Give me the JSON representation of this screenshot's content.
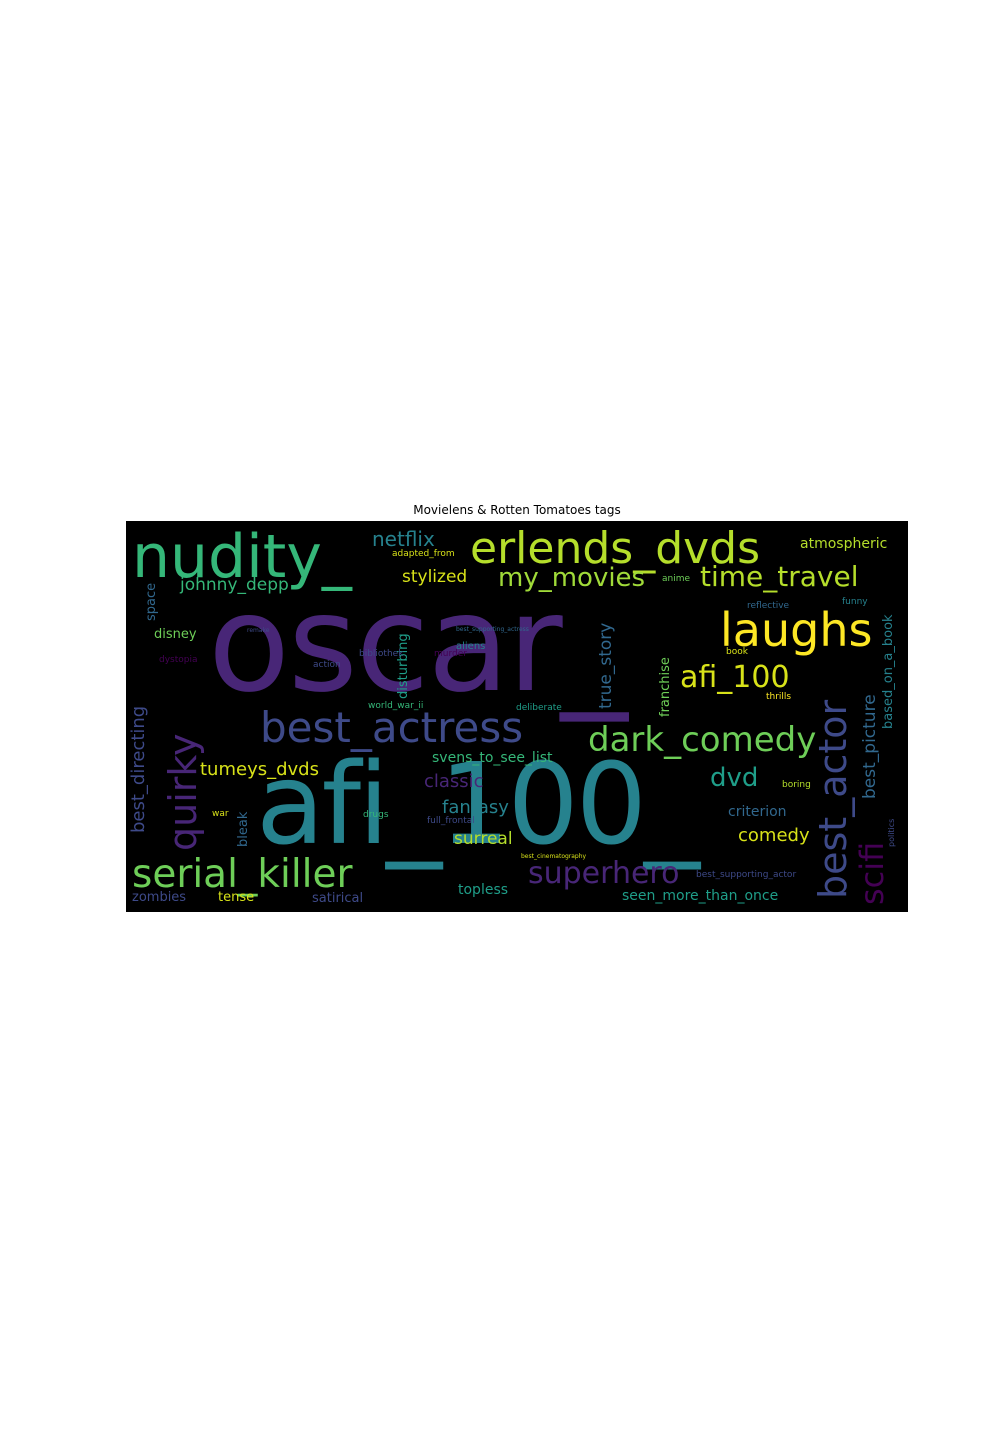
{
  "title": "Movielens & Rotten Tomatoes tags",
  "palette": {
    "purple": "#482677",
    "darkpurple": "#440154",
    "indigo": "#3e4a89",
    "blue": "#31688e",
    "teal": "#26828e",
    "sea": "#1f9e89",
    "green": "#35b779",
    "lime": "#6ece58",
    "yellowgreen": "#b5de2b",
    "yellow": "#fde725"
  },
  "words": [
    {
      "text": "oscar_",
      "color": "#482677"
    },
    {
      "text": "afi_100_",
      "color": "#26828e"
    },
    {
      "text": "nudity_",
      "color": "#35b779"
    },
    {
      "text": "erlends_dvds",
      "color": "#b5de2b"
    },
    {
      "text": "laughs",
      "color": "#fde725"
    },
    {
      "text": "best_actress",
      "color": "#3e4a89"
    },
    {
      "text": "dark_comedy",
      "color": "#6ece58"
    },
    {
      "text": "serial_killer",
      "color": "#6ece58"
    },
    {
      "text": "superhero",
      "color": "#482677"
    },
    {
      "text": "best_actor",
      "color": "#3e4a89"
    },
    {
      "text": "quirky",
      "color": "#482677"
    },
    {
      "text": "scifi",
      "color": "#440154"
    },
    {
      "text": "afi_100",
      "color": "#d8e219"
    },
    {
      "text": "time_travel",
      "color": "#b5de2b"
    },
    {
      "text": "my_movies",
      "color": "#a0da39"
    },
    {
      "text": "netflix",
      "color": "#26828e"
    },
    {
      "text": "stylized",
      "color": "#d8e219"
    },
    {
      "text": "johnny_depp",
      "color": "#35b779"
    },
    {
      "text": "atmospheric",
      "color": "#b5de2b"
    },
    {
      "text": "dvd",
      "color": "#1f9e89"
    },
    {
      "text": "tumeys_dvds",
      "color": "#d8e219"
    },
    {
      "text": "classic",
      "color": "#482677"
    },
    {
      "text": "fantasy",
      "color": "#26828e"
    },
    {
      "text": "surreal",
      "color": "#b5de2b"
    },
    {
      "text": "comedy",
      "color": "#d8e219"
    },
    {
      "text": "criterion",
      "color": "#31688e"
    },
    {
      "text": "svens_to_see_list",
      "color": "#35b779"
    },
    {
      "text": "topless",
      "color": "#1f9e89"
    },
    {
      "text": "seen_more_than_once",
      "color": "#1f9e89"
    },
    {
      "text": "zombies",
      "color": "#3e4a89"
    },
    {
      "text": "tense",
      "color": "#d8e219"
    },
    {
      "text": "satirical",
      "color": "#3e4a89"
    },
    {
      "text": "disney",
      "color": "#6ece58"
    },
    {
      "text": "best_directing",
      "color": "#3e4a89"
    },
    {
      "text": "best_picture",
      "color": "#31688e"
    },
    {
      "text": "based_on_a_book",
      "color": "#26828e"
    },
    {
      "text": "true_story",
      "color": "#31688e"
    },
    {
      "text": "franchise",
      "color": "#6ece58"
    },
    {
      "text": "disturbing",
      "color": "#1f9e89"
    },
    {
      "text": "space",
      "color": "#31688e"
    },
    {
      "text": "bleak",
      "color": "#31688e"
    },
    {
      "text": "adapted_from",
      "color": "#d8e219"
    },
    {
      "text": "bibliothek",
      "color": "#3e4a89"
    },
    {
      "text": "murder",
      "color": "#440154"
    },
    {
      "text": "anime",
      "color": "#6ece58"
    },
    {
      "text": "reflective",
      "color": "#31688e"
    },
    {
      "text": "funny",
      "color": "#26828e"
    },
    {
      "text": "remake",
      "color": "#3e4a89"
    },
    {
      "text": "best_supporting_actress",
      "color": "#31688e"
    },
    {
      "text": "aliens",
      "color": "#26828e"
    },
    {
      "text": "dystopia",
      "color": "#440154"
    },
    {
      "text": "action",
      "color": "#3e4a89"
    },
    {
      "text": "book",
      "color": "#d8e219"
    },
    {
      "text": "thrills",
      "color": "#fde725"
    },
    {
      "text": "world_war_ii",
      "color": "#35b779"
    },
    {
      "text": "deliberate",
      "color": "#1f9e89"
    },
    {
      "text": "boring",
      "color": "#b5de2b"
    },
    {
      "text": "war",
      "color": "#d8e219"
    },
    {
      "text": "drugs",
      "color": "#35b779"
    },
    {
      "text": "full_frontal",
      "color": "#3e4a89"
    },
    {
      "text": "best_cinematography",
      "color": "#d8e219"
    },
    {
      "text": "best_supporting_actor",
      "color": "#3e4a89"
    },
    {
      "text": "politics",
      "color": "#3e4a89"
    }
  ]
}
